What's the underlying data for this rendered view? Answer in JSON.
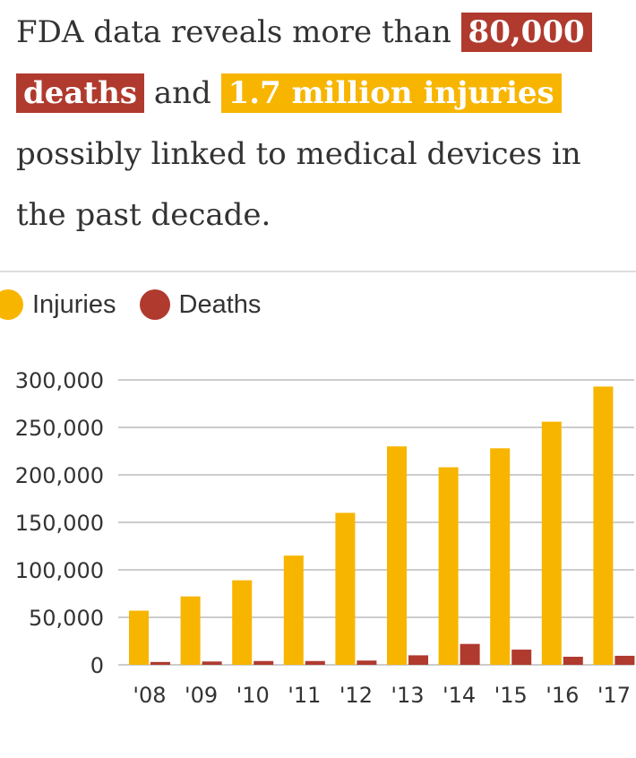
{
  "headline": {
    "text_before": "FDA data reveals more than ",
    "deaths_highlight": "80,000 deaths",
    "text_and": " and ",
    "injuries_highlight": "1.7 million injuries",
    "text_after": " possibly linked to medical devices in the past decade."
  },
  "colors": {
    "injuries": "#f7b500",
    "deaths": "#b03a2e",
    "grid": "#cccccc",
    "text": "#333333"
  },
  "chart_data": {
    "type": "bar",
    "categories": [
      "'08",
      "'09",
      "'10",
      "'11",
      "'12",
      "'13",
      "'14",
      "'15",
      "'16",
      "'17"
    ],
    "series": [
      {
        "name": "Injuries",
        "values": [
          57000,
          72000,
          89000,
          115000,
          160000,
          230000,
          208000,
          228000,
          256000,
          293000
        ]
      },
      {
        "name": "Deaths",
        "values": [
          3000,
          3500,
          4000,
          4000,
          4500,
          10000,
          22000,
          16000,
          8500,
          9500
        ]
      }
    ],
    "yticks": [
      "0",
      "50,000",
      "100,000",
      "150,000",
      "200,000",
      "250,000",
      "300,000"
    ],
    "ylim": [
      0,
      300000
    ],
    "grid": true,
    "legend_position": "top-left"
  }
}
